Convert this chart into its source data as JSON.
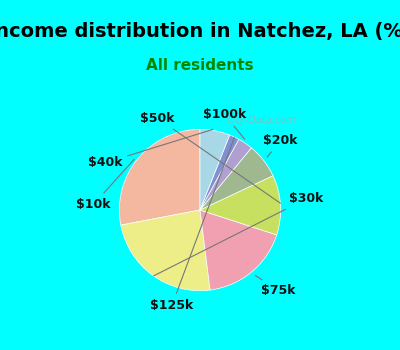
{
  "title": "Income distribution in Natchez, LA (%)",
  "subtitle": "All residents",
  "title_color": "#000000",
  "subtitle_color": "#008800",
  "background_color": "#00FFFF",
  "chart_bg_color": "#e8f5ee",
  "watermark": "City-Data.com",
  "slices": [
    {
      "label": "$10k",
      "value": 28,
      "color": "#F4B8A0"
    },
    {
      "label": "$30k",
      "value": 24,
      "color": "#EEEE88"
    },
    {
      "label": "$75k",
      "value": 18,
      "color": "#F0A0B0"
    },
    {
      "label": "$50k",
      "value": 12,
      "color": "#C8E060"
    },
    {
      "label": "$20k",
      "value": 7,
      "color": "#A0B890"
    },
    {
      "label": "$100k",
      "value": 3,
      "color": "#B0A0D0"
    },
    {
      "label": "$125k",
      "value": 2,
      "color": "#8090D0"
    },
    {
      "label": "$40k",
      "value": 6,
      "color": "#A8D8E8"
    }
  ],
  "label_font_size": 9,
  "title_font_size": 14,
  "subtitle_font_size": 11
}
